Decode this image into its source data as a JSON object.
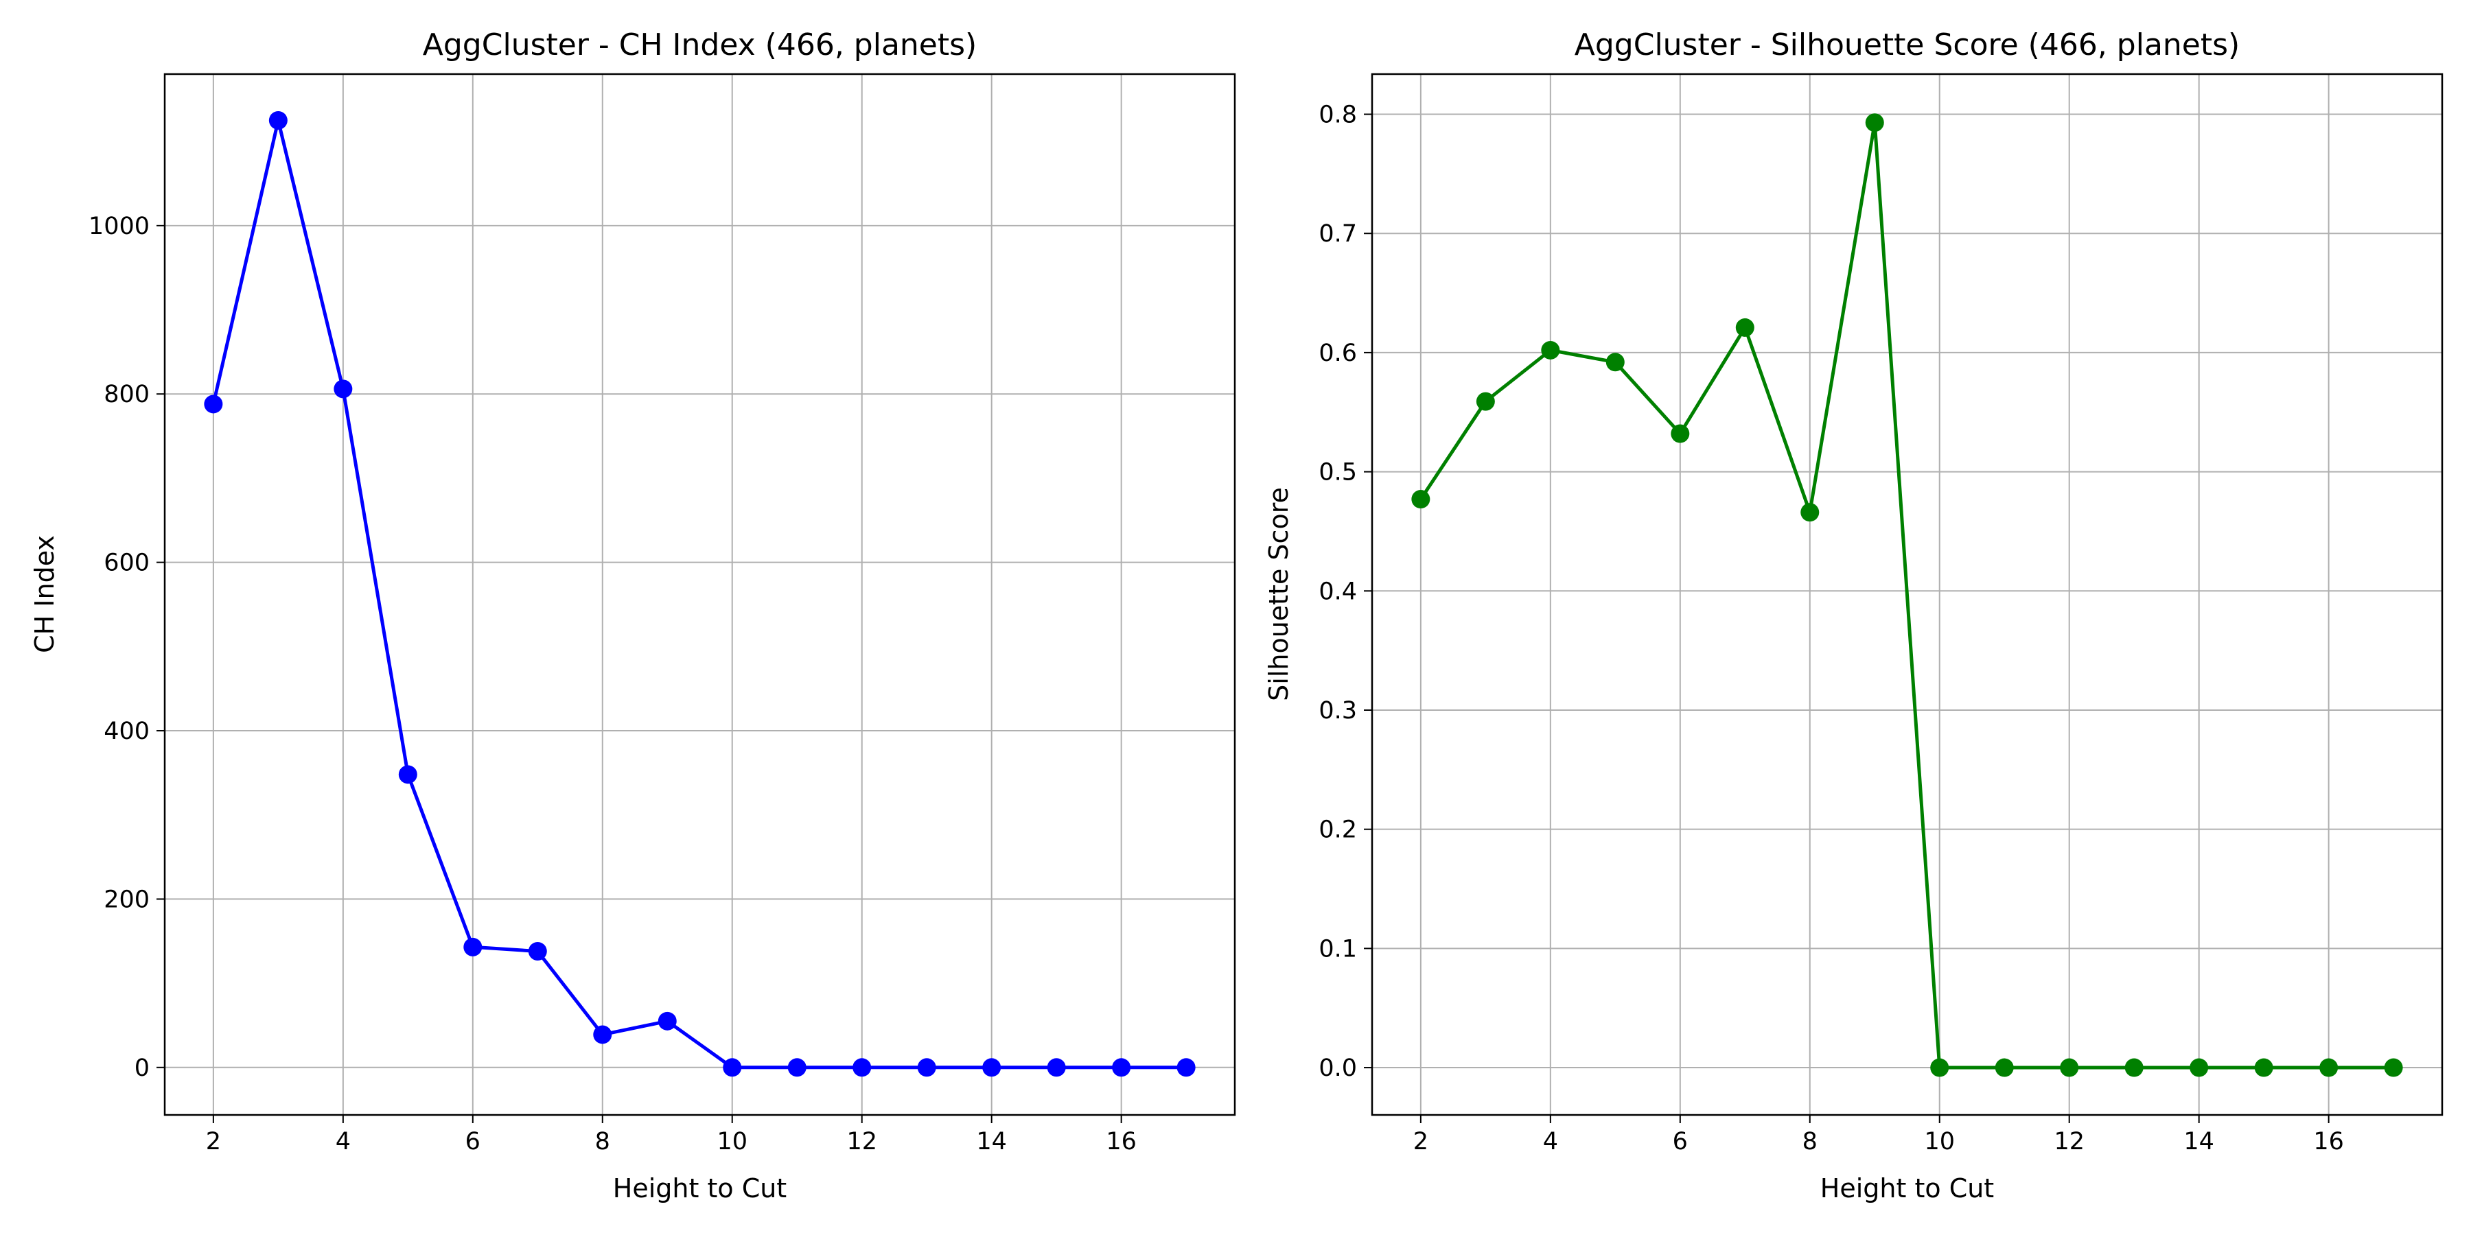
{
  "chart_data": [
    {
      "type": "line",
      "title": "AggCluster - CH Index (466, planets)",
      "xlabel": "Height to Cut",
      "ylabel": "CH Index",
      "x": [
        2,
        3,
        4,
        5,
        6,
        7,
        8,
        9,
        10,
        11,
        12,
        13,
        14,
        15,
        16,
        17
      ],
      "xlim": [
        1.25,
        17.75
      ],
      "ylim": [
        -56.4,
        1180
      ],
      "xticks": [
        2,
        4,
        6,
        8,
        10,
        12,
        14,
        16
      ],
      "yticks": [
        0,
        200,
        400,
        600,
        800,
        1000
      ],
      "grid": true,
      "series": [
        {
          "color": "#0000ff",
          "marker": "circle",
          "values": [
            788,
            1125,
            806,
            348,
            143,
            138,
            39,
            55,
            0,
            0,
            0,
            0,
            0,
            0,
            0,
            0
          ]
        }
      ]
    },
    {
      "type": "line",
      "title": "AggCluster - Silhouette Score (466, planets)",
      "xlabel": "Height to Cut",
      "ylabel": "Silhouette Score",
      "x": [
        2,
        3,
        4,
        5,
        6,
        7,
        8,
        9,
        10,
        11,
        12,
        13,
        14,
        15,
        16,
        17
      ],
      "xlim": [
        1.25,
        17.75
      ],
      "ylim": [
        -0.0397,
        0.8337
      ],
      "xticks": [
        2,
        4,
        6,
        8,
        10,
        12,
        14,
        16
      ],
      "yticks": [
        0.0,
        0.1,
        0.2,
        0.3,
        0.4,
        0.5,
        0.6,
        0.7,
        0.8
      ],
      "ytick_labels": [
        "0.0",
        "0.1",
        "0.2",
        "0.3",
        "0.4",
        "0.5",
        "0.6",
        "0.7",
        "0.8"
      ],
      "grid": true,
      "series": [
        {
          "color": "#008000",
          "marker": "circle",
          "values": [
            0.477,
            0.559,
            0.602,
            0.592,
            0.532,
            0.621,
            0.466,
            0.793,
            0,
            0,
            0,
            0,
            0,
            0,
            0,
            0
          ]
        }
      ]
    }
  ]
}
